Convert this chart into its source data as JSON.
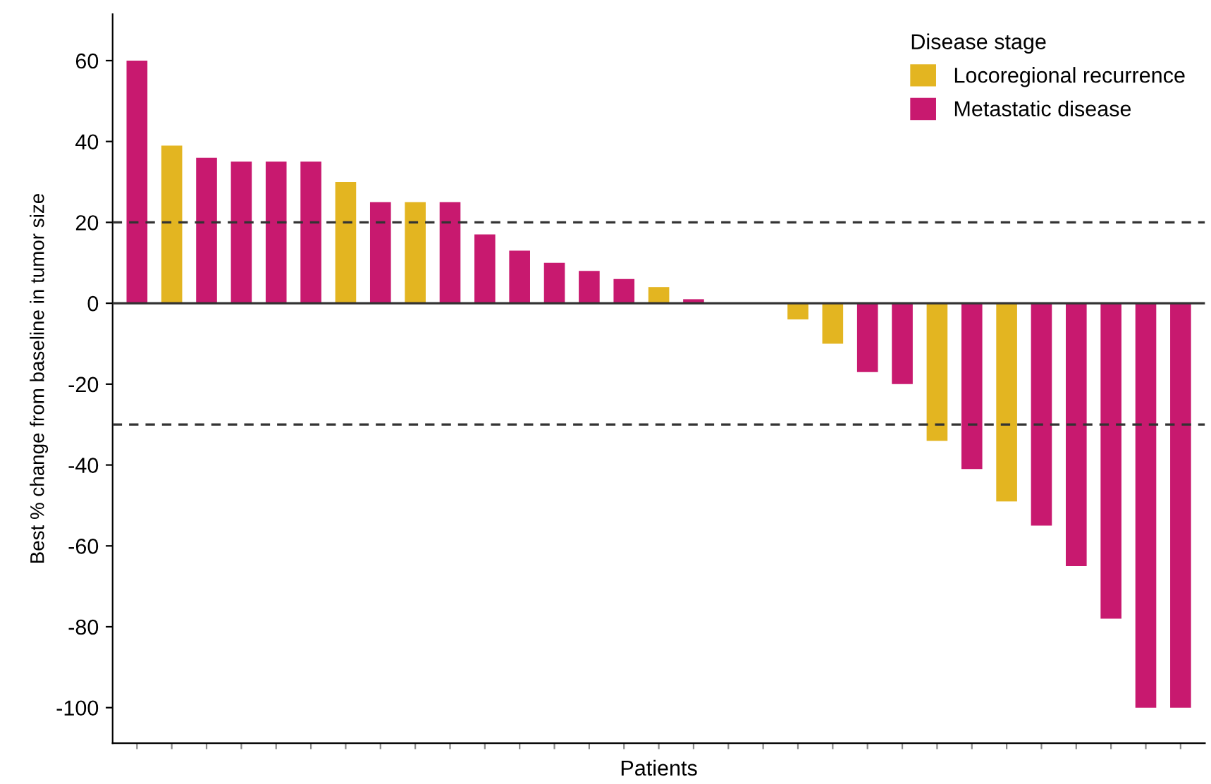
{
  "chart_data": {
    "type": "bar",
    "xlabel": "Patients",
    "ylabel": "Best % change from baseline in tumor size",
    "legend_title": "Disease stage",
    "categories": [
      null,
      null,
      null,
      null,
      null,
      null,
      null,
      null,
      null,
      null,
      null,
      null,
      null,
      null,
      null,
      null,
      null,
      null,
      null,
      null,
      null,
      null,
      null,
      null,
      null,
      null,
      null,
      null,
      null,
      null,
      null
    ],
    "series": [
      {
        "name": "Locoregional recurrence",
        "color": "#e3b521",
        "values": [
          null,
          39,
          null,
          null,
          null,
          null,
          30,
          null,
          25,
          null,
          null,
          null,
          null,
          null,
          null,
          4,
          null,
          null,
          null,
          -4,
          -10,
          null,
          null,
          -34,
          null,
          -49,
          null,
          null,
          null,
          null,
          null
        ]
      },
      {
        "name": "Metastatic disease",
        "color": "#c8196f",
        "values": [
          60,
          null,
          36,
          35,
          35,
          35,
          null,
          25,
          null,
          25,
          17,
          13,
          10,
          8,
          6,
          null,
          1,
          null,
          null,
          null,
          null,
          -17,
          -20,
          null,
          -41,
          null,
          -55,
          -65,
          -78,
          -100,
          -100
        ]
      }
    ],
    "ylim": [
      -108.8,
      71.5
    ],
    "yticks": [
      60,
      40,
      20,
      0,
      -20,
      -40,
      -60,
      -80,
      -100
    ],
    "ref_lines": [
      {
        "axis": "y",
        "value": 20,
        "line_style": "dashed",
        "color": "#333333"
      },
      {
        "axis": "y",
        "value": -30,
        "line_style": "dashed",
        "color": "#333333"
      },
      {
        "axis": "y",
        "value": 0,
        "line_style": "solid",
        "color": "#333333"
      }
    ],
    "legend": "top right",
    "grid": false
  }
}
